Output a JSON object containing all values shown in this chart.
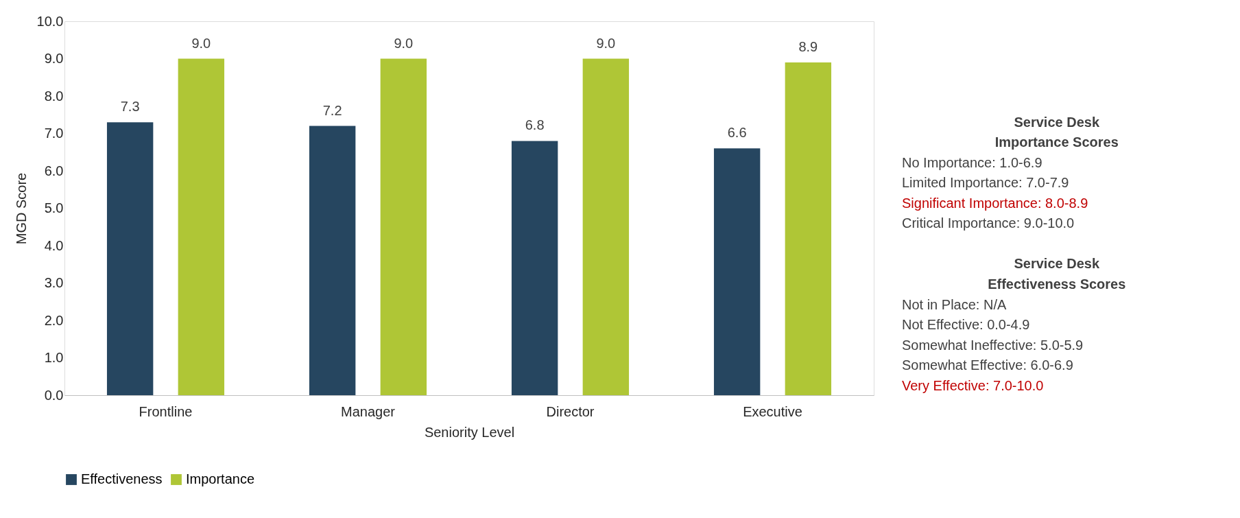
{
  "chart_data": {
    "type": "bar",
    "xlabel": "Seniority Level",
    "ylabel": "MGD Score",
    "categories": [
      "Frontline",
      "Manager",
      "Director",
      "Executive"
    ],
    "series": [
      {
        "name": "Effectiveness",
        "color": "#264660",
        "values": [
          7.3,
          7.2,
          6.8,
          6.6
        ],
        "value_labels": [
          "7.3",
          "7.2",
          "6.8",
          "6.6"
        ]
      },
      {
        "name": "Importance",
        "color": "#afc636",
        "values": [
          9.0,
          9.0,
          9.0,
          8.9
        ],
        "value_labels": [
          "9.0",
          "9.0",
          "9.0",
          "8.9"
        ]
      }
    ],
    "ylim": [
      0,
      10
    ],
    "yticks": [
      {
        "value": 0,
        "label": "0.0"
      },
      {
        "value": 1,
        "label": "1.0"
      },
      {
        "value": 2,
        "label": "2.0"
      },
      {
        "value": 3,
        "label": "3.0"
      },
      {
        "value": 4,
        "label": "4.0"
      },
      {
        "value": 5,
        "label": "5.0"
      },
      {
        "value": 6,
        "label": "6.0"
      },
      {
        "value": 7,
        "label": "7.0"
      },
      {
        "value": 8,
        "label": "8.0"
      },
      {
        "value": 9,
        "label": "9.0"
      },
      {
        "value": 10,
        "label": "10.0"
      }
    ],
    "legend": "bottom",
    "grid": false,
    "annotations": [
      "Service Desk",
      "Importance Scores",
      "No Importance: 1.0-6.9",
      "Limited Importance: 7.0-7.9",
      "Significant Importance: 8.0-8.9",
      "Critical Importance: 9.0-10.0",
      "Service Desk",
      "Effectiveness Scores",
      "Not in Place: N/A",
      "Not Effective: 0.0-4.9",
      "Somewhat Ineffective: 5.0-5.9",
      "Somewhat Effective: 6.0-6.9",
      "Very Effective: 7.0-10.0"
    ]
  }
}
